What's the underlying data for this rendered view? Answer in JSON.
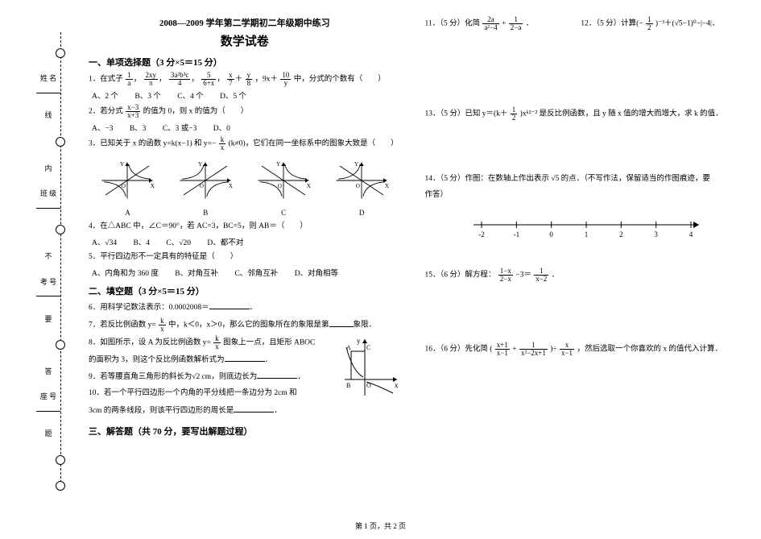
{
  "header_small": "2008—2009 学年第二学期初二年级期中练习",
  "header_big": "数学试卷",
  "section1_title": "一、单项选择题（3 分×5＝15 分）",
  "q1_lead": "1．在式子",
  "q1_frac1n": "1",
  "q1_frac1d": "a",
  "q1_sep": "，",
  "q1_frac2n": "2xy",
  "q1_frac2d": "π",
  "q1_frac3n": "3a²b³c",
  "q1_frac3d": "4",
  "q1_frac4n": "5",
  "q1_frac4d": "6+x",
  "q1_frac5n": "x",
  "q1_frac5d": "7",
  "q1_plus": "＋",
  "q1_frac6n": "y",
  "q1_frac6d": "8",
  "q1_term": "，9x＋",
  "q1_frac7n": "10",
  "q1_frac7d": "y",
  "q1_tail": "中，分式的个数有（　　）",
  "q1_A": "A、2 个",
  "q1_B": "B、3 个",
  "q1_C": "C、4 个",
  "q1_D": "D、5 个",
  "q2_lead": "2．若分式",
  "q2_fracn": "x−3",
  "q2_fracd": "x+3",
  "q2_tail": "的值为 0，则 x 的值为（　　）",
  "q2_A": "A、−3",
  "q2_B": "B、3",
  "q2_C": "C、3 或−3",
  "q2_D": "D、0",
  "q3_lead": "3．已知关于 x 的函数 y=k(x−1) 和 y=−",
  "q3_fracn": "k",
  "q3_fracd": "x",
  "q3_tail": "(k≠0)，它们在同一坐标系中的图象大致是（　　）",
  "g3A": "A",
  "g3B": "B",
  "g3C": "C",
  "g3D": "D",
  "q4": "4．在△ABC 中，∠C＝90°，若 AC=3，BC=5，则 AB＝（　　）",
  "q4_A": "A、√34",
  "q4_B": "B、4",
  "q4_C": "C、√20",
  "q4_D": "D、都不对",
  "q5": "5．平行四边形不一定具有的特征是（　　）",
  "q5_A": "A、内角和为 360 度",
  "q5_B": "B、对角互补",
  "q5_C": "C、邻角互补",
  "q5_D": "D、对角相等",
  "section2_title": "二、填空题（3 分×5＝15 分）",
  "q6": "6．用科学记数法表示：0.0002008＝",
  "q6_tail": "．",
  "q7_lead": "7．若反比例函数 y=",
  "q7_fracn": "k",
  "q7_fracd": "x",
  "q7_mid": "中，k＜0，x＞0，那么它的图象所在的象限是第",
  "q7_tail": "象限．",
  "q8_lead": "8．如图所示，设 A 为反比例函数 y=",
  "q8_fracn": "k",
  "q8_fracd": "x",
  "q8_mid": "图象上一点，且矩形 ABOC",
  "q8_line2": "的面积为 3，则这个反比例函数解析式为",
  "q8_tail": "．",
  "q9": "9．若等腰直角三角形的斜长为√2 cm，则底边长为",
  "q9_tail": "．",
  "q10a": "10．若一个平行四边形一个内角的平分线把一条边分为 2cm 和",
  "q10b": "3cm 的两条线段，则该平行四边形的周长是",
  "q10_tail": "．",
  "section3_title": "三、解答题（共 70 分，要写出解题过程）",
  "q11_lead": "11．（5 分）化简",
  "q11_f1n": "2a",
  "q11_f1d": "a²−4",
  "q11_plus": "+",
  "q11_f2n": "1",
  "q11_f2d": "2−a",
  "q11_tail": "．",
  "q12_lead": "12．（5 分）计算(−",
  "q12_f1n": "1",
  "q12_f1d": "2",
  "q12_mid": ")⁻³＋(√5−1)⁰−|−4|．",
  "q13_lead": "13．（5 分）已知 y＝(k＋",
  "q13_f1n": "1",
  "q13_f1d": "2",
  "q13_tail": ")xᵏ²⁻² 是反比例函数，且 y 随 x 值的增大而增大，求 k 的值．",
  "q14_a": "14．（5 分）作图：在数轴上作出表示 √5 的点．（不写作法，保留适当的作图痕迹，要",
  "q14_b": "作答）",
  "numline_ticks": [
    "-2",
    "-1",
    "0",
    "1",
    "2",
    "3",
    "4"
  ],
  "q15_lead": "15．（6 分）解方程：",
  "q15_f1n": "1−x",
  "q15_f1d": "2−x",
  "q15_mid": "−3＝",
  "q15_f2n": "1",
  "q15_f2d": "x−2",
  "q15_tail": "．",
  "q16_lead": "16．（6 分）先化简 (",
  "q16_f1n": "x+1",
  "q16_f1d": "x−1",
  "q16_plus1": "+",
  "q16_f2n": "1",
  "q16_f2d": "x²−2x+1",
  "q16_mid": ")÷",
  "q16_f3n": "x",
  "q16_f3d": "x−1",
  "q16_tail": "，然后选取一个你喜欢的 x 的值代入计算．",
  "footer_text": "第 1 页，共 2 页",
  "fig8_A": "A",
  "fig8_B": "B",
  "fig8_C": "C",
  "fig8_O": "O",
  "fig8_y": "y",
  "fig8_x": "x",
  "bind_name": "姓 名",
  "bind_class": "班 级",
  "bind_exam": "考 号",
  "bind_seat": "座 号",
  "v1": "线",
  "v2": "内",
  "v3": "不",
  "v4": "要",
  "v5": "答",
  "v6": "题"
}
